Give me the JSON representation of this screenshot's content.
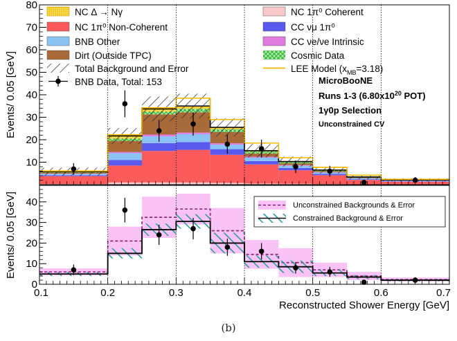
{
  "chart_data": [
    {
      "type": "bar",
      "panel": "top",
      "ylabel": "Events/ 0.05 [GeV]",
      "ylim": [
        0,
        80
      ],
      "yticks": [
        10,
        20,
        30,
        40,
        50,
        60,
        70,
        80
      ],
      "xlim": [
        0.1,
        0.7
      ],
      "bin_edges": [
        0.1,
        0.2,
        0.25,
        0.3,
        0.35,
        0.4,
        0.45,
        0.5,
        0.55,
        0.6,
        0.7
      ],
      "stack_series": [
        {
          "name": "NC 1π⁰ Coherent",
          "color": "#f9c8c8",
          "values": [
            0.3,
            1.0,
            1.0,
            1.0,
            0.8,
            0.5,
            0.4,
            0.2,
            0.1,
            0.1
          ]
        },
        {
          "name": "NC 1π⁰ Non-Coherent",
          "color": "#fa5a5a",
          "values": [
            3.5,
            7.5,
            14.0,
            14.5,
            12.5,
            8.5,
            6.0,
            4.0,
            2.0,
            1.2
          ]
        },
        {
          "name": "CC νμ 1π⁰",
          "color": "#5a5aee",
          "values": [
            0.4,
            2.5,
            3.5,
            3.5,
            2.5,
            1.5,
            1.0,
            0.6,
            0.3,
            0.2
          ]
        },
        {
          "name": "BNB Other",
          "color": "#8cc3f5",
          "values": [
            0.6,
            3.0,
            3.0,
            3.5,
            2.0,
            1.5,
            1.0,
            0.6,
            0.4,
            0.2
          ]
        },
        {
          "name": "CC νe/νe Intrinsic",
          "color": "#e07be0",
          "values": [
            0.1,
            0.5,
            0.8,
            0.7,
            0.6,
            0.4,
            0.3,
            0.2,
            0.1,
            0.1
          ]
        },
        {
          "name": "Dirt (Outside TPC)",
          "color": "#a86a38",
          "values": [
            0.5,
            5.0,
            9.0,
            9.0,
            5.0,
            1.5,
            0.8,
            0.4,
            0.2,
            0.1
          ]
        },
        {
          "name": "Cosmic Data",
          "color": "#3ec63e",
          "values": [
            0.3,
            1.0,
            1.2,
            1.5,
            1.2,
            0.8,
            0.5,
            0.3,
            0.2,
            0.1
          ]
        },
        {
          "name": "NC Δ → Nγ",
          "color": "#f5c518",
          "values": [
            0.1,
            1.2,
            1.2,
            1.3,
            0.9,
            0.4,
            0.3,
            0.2,
            0.1,
            0.1
          ]
        }
      ],
      "total_error": [
        1.8,
        3.5,
        5.5,
        5.5,
        4.0,
        3.0,
        2.2,
        1.5,
        1.0,
        0.7
      ],
      "lee_model": {
        "name": "LEE Model (x",
        "name_sub": "MB",
        "name_tail": "=3.18)",
        "color": "#f5b800",
        "values": [
          6.1,
          22.2,
          34.2,
          38.5,
          29.0,
          18.5,
          12.0,
          7.7,
          4.2,
          2.4
        ]
      },
      "data_points": {
        "name": "BNB Data, Total: 153",
        "x": [
          0.15,
          0.225,
          0.275,
          0.325,
          0.375,
          0.425,
          0.475,
          0.525,
          0.575,
          0.65
        ],
        "y": [
          7,
          36,
          24,
          27,
          18,
          16,
          8,
          6,
          1,
          2
        ],
        "err": [
          2.6,
          6.0,
          4.9,
          5.2,
          4.2,
          4.0,
          2.8,
          2.4,
          1.0,
          1.4
        ]
      },
      "legend": [
        {
          "label": "NC Δ → Nγ",
          "swatch": "hatch-yellow"
        },
        {
          "label": "NC 1π⁰ Non-Coherent",
          "swatch": "#fa5a5a"
        },
        {
          "label": "BNB Other",
          "swatch": "#8cc3f5"
        },
        {
          "label": "Dirt (Outside TPC)",
          "swatch": "#a86a38"
        },
        {
          "label": "Total Background and Error",
          "swatch": "hatch-black"
        },
        {
          "label": "BNB Data, Total: 153",
          "swatch": "marker"
        },
        {
          "label": "NC 1π⁰ Coherent",
          "swatch": "#f9c8c8"
        },
        {
          "label": "CC νμ 1π⁰",
          "swatch": "#5a5aee"
        },
        {
          "label": "CC νe/νe Intrinsic",
          "swatch": "#e07be0"
        },
        {
          "label": "Cosmic Data",
          "swatch": "hatch-green"
        },
        {
          "label": "LEE Model (x",
          "swatch": "line-yellow"
        }
      ],
      "annotations": [
        "MicroBooNE",
        "Runs 1-3 (6.80x10",
        "1γ0p Selection",
        "Unconstrained CV"
      ],
      "annotation_sup": "20",
      "annotation_tail": " POT)"
    },
    {
      "type": "bar",
      "panel": "bottom",
      "ylabel": "Events/ 0.05 [GeV]",
      "xlabel": "Reconstructed Shower Energy [GeV]",
      "ylim": [
        0,
        48
      ],
      "yticks": [
        0,
        10,
        20,
        30,
        40
      ],
      "xticks": [
        0.1,
        0.2,
        0.3,
        0.4,
        0.5,
        0.6,
        0.7
      ],
      "xtick_labels": [
        "0.1",
        "0.2",
        "0.3",
        "0.4",
        "0.5",
        "0.6",
        "0.7"
      ],
      "bin_edges": [
        0.1,
        0.2,
        0.25,
        0.3,
        0.35,
        0.4,
        0.45,
        0.5,
        0.55,
        0.6,
        0.7
      ],
      "unconstrained": {
        "name": "Unconstrained Backgrounds & Error",
        "color": "#f9c4f5",
        "values": [
          6.0,
          21.0,
          32.5,
          36.5,
          26.0,
          14.5,
          10.5,
          7.0,
          4.0,
          2.3
        ],
        "err": [
          1.7,
          7.0,
          10.0,
          7.5,
          11.0,
          7.0,
          7.0,
          3.5,
          2.0,
          1.0
        ]
      },
      "constrained": {
        "name": "Constrained Background & Error",
        "color": "#1f9a9a",
        "values": [
          5.0,
          15.0,
          26.5,
          30.5,
          20.0,
          11.0,
          8.5,
          5.5,
          3.5,
          2.0
        ],
        "err": [
          1.0,
          2.5,
          3.0,
          3.5,
          5.0,
          3.0,
          3.0,
          1.5,
          1.0,
          0.6
        ]
      },
      "data_points": {
        "x": [
          0.15,
          0.225,
          0.275,
          0.325,
          0.375,
          0.425,
          0.475,
          0.525,
          0.575,
          0.65
        ],
        "y": [
          7,
          36,
          24,
          27,
          18,
          16,
          8,
          6,
          1,
          2
        ],
        "err": [
          2.6,
          6.0,
          4.9,
          5.2,
          4.2,
          4.0,
          2.8,
          2.4,
          1.0,
          1.4
        ]
      }
    }
  ],
  "caption": "(b)"
}
